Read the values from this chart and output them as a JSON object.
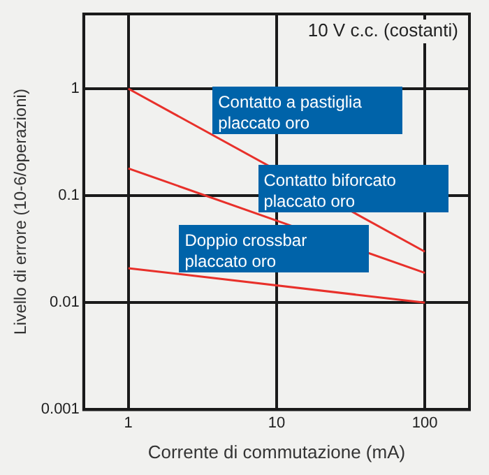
{
  "chart_data": {
    "type": "line",
    "xlabel": "Corrente di commutazione (mA)",
    "ylabel": "Livello di errore (10-6/operazioni)",
    "annotations": [
      "10 V c.c. (costanti)"
    ],
    "x": [
      1,
      100
    ],
    "series": [
      {
        "name": "Contatto a pastiglia placcato oro",
        "color": "#e8302a",
        "values": [
          1,
          0.03
        ]
      },
      {
        "name": "Contatto biforcato placcato oro",
        "color": "#e8302a",
        "values": [
          0.18,
          0.019
        ]
      },
      {
        "name": "Doppio crossbar placcato oro",
        "color": "#e8302a",
        "values": [
          0.021,
          0.01
        ]
      }
    ],
    "log": "xy",
    "xlim": [
      0.5,
      200
    ],
    "ylim": [
      0.001,
      5
    ],
    "xticks": [
      1,
      10,
      100
    ],
    "yticks": [
      0.001,
      0.01,
      0.1,
      1
    ],
    "grid": true,
    "legend": false,
    "marker": "none",
    "line_style": "solid"
  }
}
